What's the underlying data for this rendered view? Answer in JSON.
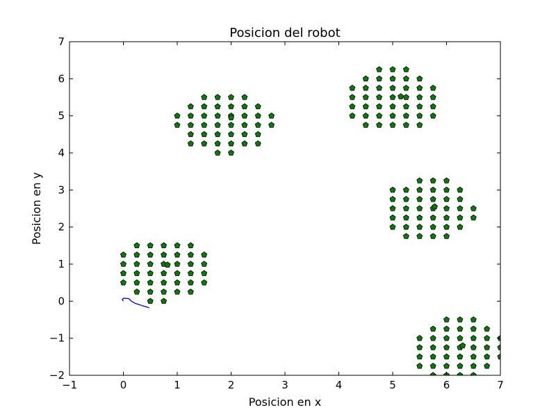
{
  "chart_data": {
    "type": "scatter",
    "title": "Posicion del robot",
    "xlabel": "Posicion en x",
    "ylabel": "Posicion en y",
    "xlim": [
      -1,
      7
    ],
    "ylim": [
      -2,
      7
    ],
    "x_ticks": [
      "−1",
      "0",
      "1",
      "2",
      "3",
      "4",
      "5",
      "6",
      "7"
    ],
    "y_ticks": [
      "−2",
      "−1",
      "0",
      "1",
      "2",
      "3",
      "4",
      "5",
      "6",
      "7"
    ],
    "x_tick_values": [
      -1,
      0,
      1,
      2,
      3,
      4,
      5,
      6,
      7
    ],
    "y_tick_values": [
      -2,
      -1,
      0,
      1,
      2,
      3,
      4,
      5,
      6,
      7
    ],
    "grid": false,
    "colors": {
      "marker_fill": "#0b7a0b",
      "marker_edge": "#000000",
      "path_line": "#0000ff"
    },
    "robot_path": {
      "x": [
        0.0,
        -0.02,
        0.01,
        0.1,
        0.15,
        0.22,
        0.35,
        0.48
      ],
      "y": [
        0.0,
        0.05,
        0.08,
        0.07,
        0.0,
        -0.06,
        -0.12,
        -0.18
      ]
    },
    "obstacles": [
      {
        "rows": [
          {
            "y": 1.5,
            "x": [
              0.25,
              0.5,
              0.75,
              1.0,
              1.25
            ]
          },
          {
            "y": 1.25,
            "x": [
              0.0,
              0.25,
              0.5,
              0.75,
              1.0,
              1.25,
              1.5
            ]
          },
          {
            "y": 1.0,
            "x": [
              0.0,
              0.25,
              0.5,
              0.75,
              1.0,
              1.25,
              1.5
            ]
          },
          {
            "y": 0.75,
            "x": [
              0.0,
              0.25,
              0.5,
              0.75,
              1.0,
              1.25,
              1.5
            ]
          },
          {
            "y": 0.5,
            "x": [
              0.0,
              0.25,
              0.5,
              0.75,
              1.0,
              1.25,
              1.5
            ]
          },
          {
            "y": 0.25,
            "x": [
              0.25,
              0.5,
              0.75,
              1.0,
              1.25
            ]
          },
          {
            "y": 0.0,
            "x": [
              0.5,
              0.75
            ]
          }
        ],
        "extra": [
          {
            "x": 0.82,
            "y": 0.98
          }
        ]
      },
      {
        "rows": [
          {
            "y": 5.5,
            "x": [
              1.5,
              1.75,
              2.0,
              2.25
            ]
          },
          {
            "y": 5.25,
            "x": [
              1.25,
              1.5,
              1.75,
              2.0,
              2.25,
              2.5
            ]
          },
          {
            "y": 5.0,
            "x": [
              1.0,
              1.25,
              1.5,
              1.75,
              2.0,
              2.25,
              2.5,
              2.75
            ]
          },
          {
            "y": 4.75,
            "x": [
              1.0,
              1.25,
              1.5,
              1.75,
              2.0,
              2.25,
              2.5,
              2.75
            ]
          },
          {
            "y": 4.5,
            "x": [
              1.25,
              1.5,
              1.75,
              2.0,
              2.25,
              2.5
            ]
          },
          {
            "y": 4.25,
            "x": [
              1.25,
              1.5,
              1.75,
              2.0,
              2.25,
              2.5
            ]
          },
          {
            "y": 4.0,
            "x": [
              1.75,
              2.0
            ]
          }
        ],
        "extra": [
          {
            "x": 2.0,
            "y": 4.95
          }
        ]
      },
      {
        "rows": [
          {
            "y": 6.25,
            "x": [
              4.75,
              5.0,
              5.25
            ]
          },
          {
            "y": 6.0,
            "x": [
              4.5,
              4.75,
              5.0,
              5.25,
              5.5
            ]
          },
          {
            "y": 5.75,
            "x": [
              4.25,
              4.5,
              4.75,
              5.0,
              5.25,
              5.5,
              5.75
            ]
          },
          {
            "y": 5.5,
            "x": [
              4.25,
              4.5,
              4.75,
              5.0,
              5.25,
              5.5,
              5.75
            ]
          },
          {
            "y": 5.25,
            "x": [
              4.25,
              4.5,
              4.75,
              5.0,
              5.25,
              5.5,
              5.75
            ]
          },
          {
            "y": 5.0,
            "x": [
              4.25,
              4.5,
              4.75,
              5.0,
              5.25,
              5.5,
              5.75
            ]
          },
          {
            "y": 4.75,
            "x": [
              4.5,
              4.75,
              5.0,
              5.25,
              5.5
            ]
          }
        ],
        "extra": [
          {
            "x": 5.15,
            "y": 5.52
          }
        ]
      },
      {
        "rows": [
          {
            "y": 3.25,
            "x": [
              5.5,
              5.75,
              6.0
            ]
          },
          {
            "y": 3.0,
            "x": [
              5.0,
              5.25,
              5.5,
              5.75,
              6.0,
              6.25
            ]
          },
          {
            "y": 2.75,
            "x": [
              5.0,
              5.25,
              5.5,
              5.75,
              6.0,
              6.25
            ]
          },
          {
            "y": 2.5,
            "x": [
              5.0,
              5.25,
              5.5,
              5.75,
              6.0,
              6.25,
              6.5
            ]
          },
          {
            "y": 2.25,
            "x": [
              5.0,
              5.25,
              5.5,
              5.75,
              6.0,
              6.25,
              6.5
            ]
          },
          {
            "y": 2.0,
            "x": [
              5.0,
              5.25,
              5.5,
              5.75,
              6.0,
              6.25
            ]
          },
          {
            "y": 1.75,
            "x": [
              5.25,
              5.5,
              5.75,
              6.0
            ]
          }
        ],
        "extra": [
          {
            "x": 5.78,
            "y": 2.55
          }
        ]
      },
      {
        "rows": [
          {
            "y": -0.5,
            "x": [
              6.0,
              6.25,
              6.5
            ]
          },
          {
            "y": -0.75,
            "x": [
              5.75,
              6.0,
              6.25,
              6.5,
              6.75
            ]
          },
          {
            "y": -1.0,
            "x": [
              5.5,
              5.75,
              6.0,
              6.25,
              6.5,
              6.75,
              7.0
            ]
          },
          {
            "y": -1.25,
            "x": [
              5.5,
              5.75,
              6.0,
              6.25,
              6.5,
              6.75,
              7.0
            ]
          },
          {
            "y": -1.5,
            "x": [
              5.5,
              5.75,
              6.0,
              6.25,
              6.5,
              6.75,
              7.0
            ]
          },
          {
            "y": -1.75,
            "x": [
              5.5,
              5.75,
              6.0,
              6.25,
              6.5,
              6.75
            ]
          },
          {
            "y": -2.0,
            "x": [
              5.75,
              6.0,
              6.25,
              6.5
            ]
          }
        ],
        "extra": [
          {
            "x": 6.3,
            "y": -1.2
          }
        ]
      }
    ]
  }
}
